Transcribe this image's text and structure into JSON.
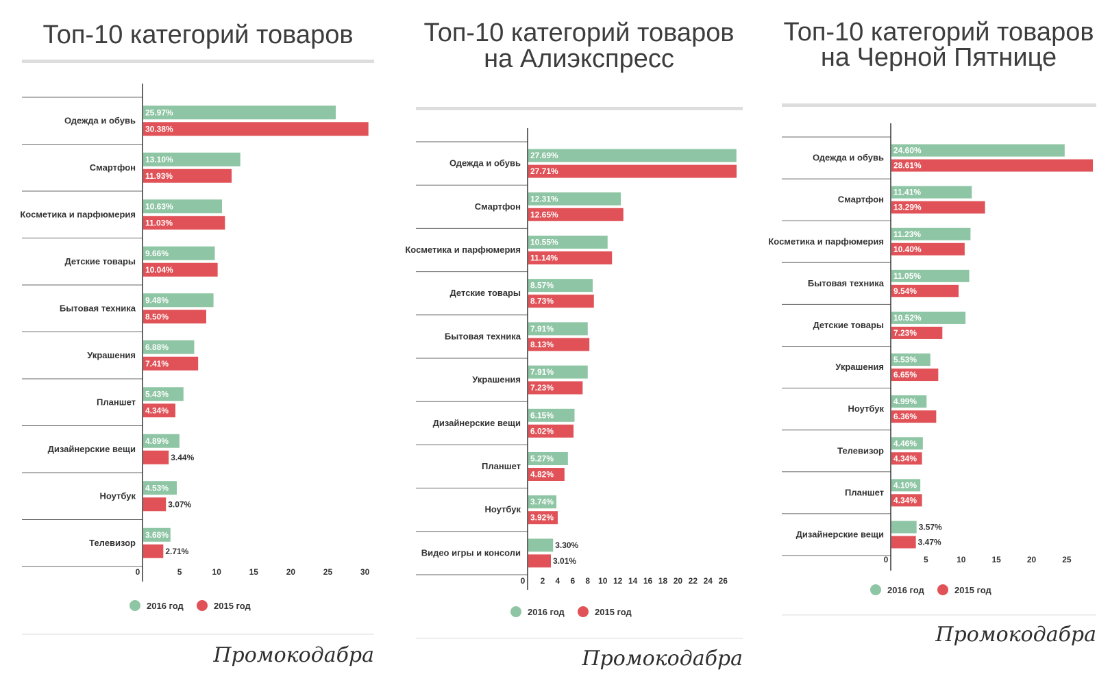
{
  "colors": {
    "y2016": "#8ec5a4",
    "y2015": "#e05257",
    "axis": "#333333",
    "rule": "#dddddd",
    "sep": "#666666"
  },
  "brand": "Промокодабра",
  "chart_data": [
    {
      "type": "bar",
      "orientation": "horizontal",
      "title": [
        "Топ-10 категорий товаров"
      ],
      "legend": [
        "2016 год",
        "2015 год"
      ],
      "categories": [
        "Одежда и обувь",
        "Смартфон",
        "Косметика и парфюмерия",
        "Детские товары",
        "Бытовая техника",
        "Украшения",
        "Планшет",
        "Дизайнерские вещи",
        "Ноутбук",
        "Телевизор"
      ],
      "series": [
        {
          "name": "2016 год",
          "values": [
            25.97,
            13.1,
            10.63,
            9.66,
            9.48,
            6.88,
            5.43,
            4.89,
            4.53,
            3.68
          ],
          "labels": [
            "25.97%",
            "13.10%",
            "10.63%",
            "9.66%",
            "9.48%",
            "6.88%",
            "5.43%",
            "4.89%",
            "4.53%",
            "3.68%"
          ]
        },
        {
          "name": "2015 год",
          "values": [
            30.38,
            11.93,
            11.03,
            10.04,
            8.5,
            7.41,
            4.34,
            3.44,
            3.07,
            2.71
          ],
          "labels": [
            "30.38%",
            "11.93%",
            "11.03%",
            "10.04%",
            "8.50%",
            "7.41%",
            "4.34%",
            "3.44%",
            "3.07%",
            "2.71%"
          ]
        }
      ],
      "xticks": [
        0,
        5,
        10,
        15,
        20,
        25,
        30
      ],
      "xlim": [
        0,
        30.5
      ]
    },
    {
      "type": "bar",
      "orientation": "horizontal",
      "title": [
        "Топ-10 категорий товаров",
        "на Алиэкспресс"
      ],
      "legend": [
        "2016 год",
        "2015 год"
      ],
      "categories": [
        "Одежда и обувь",
        "Смартфон",
        "Косметика и парфюмерия",
        "Детские товары",
        "Бытовая техника",
        "Украшения",
        "Дизайнерские вещи",
        "Планшет",
        "Ноутбук",
        "Видео игры и консоли"
      ],
      "series": [
        {
          "name": "2016 год",
          "values": [
            27.69,
            12.31,
            10.55,
            8.57,
            7.91,
            7.91,
            6.15,
            5.27,
            3.74,
            3.3
          ],
          "labels": [
            "27.69%",
            "12.31%",
            "10.55%",
            "8.57%",
            "7.91%",
            "7.91%",
            "6.15%",
            "5.27%",
            "3.74%",
            "3.30%"
          ]
        },
        {
          "name": "2015 год",
          "values": [
            27.71,
            12.65,
            11.14,
            8.73,
            8.13,
            7.23,
            6.02,
            4.82,
            3.92,
            3.01
          ],
          "labels": [
            "27.71%",
            "12.65%",
            "11.14%",
            "8.73%",
            "8.13%",
            "7.23%",
            "6.02%",
            "4.82%",
            "3.92%",
            "3.01%"
          ]
        }
      ],
      "xticks": [
        0,
        2,
        4,
        6,
        8,
        10,
        12,
        14,
        16,
        18,
        20,
        22,
        24,
        26
      ],
      "xlim": [
        0,
        27.8
      ]
    },
    {
      "type": "bar",
      "orientation": "horizontal",
      "title": [
        "Топ-10 категорий товаров",
        "на Черной Пятнице"
      ],
      "legend": [
        "2016 год",
        "2015 год"
      ],
      "categories": [
        "Одежда и обувь",
        "Смартфон",
        "Косметика и парфюмерия",
        "Бытовая техника",
        "Детские товары",
        "Украшения",
        "Ноутбук",
        "Телевизор",
        "Планшет",
        "Дизайнерские вещи"
      ],
      "series": [
        {
          "name": "2016 год",
          "values": [
            24.6,
            11.41,
            11.23,
            11.05,
            10.52,
            5.53,
            4.99,
            4.46,
            4.1,
            3.57
          ],
          "labels": [
            "24.60%",
            "11.41%",
            "11.23%",
            "11.05%",
            "10.52%",
            "5.53%",
            "4.99%",
            "4.46%",
            "4.10%",
            "3.57%"
          ]
        },
        {
          "name": "2015 год",
          "values": [
            28.61,
            13.29,
            10.4,
            9.54,
            7.23,
            6.65,
            6.36,
            4.34,
            4.34,
            3.47
          ],
          "labels": [
            "28.61%",
            "13.29%",
            "10.40%",
            "9.54%",
            "7.23%",
            "6.65%",
            "6.36%",
            "4.34%",
            "4.34%",
            "3.47%"
          ]
        }
      ],
      "xticks": [
        0,
        5,
        10,
        15,
        20,
        25
      ],
      "xlim": [
        0,
        28.8
      ]
    }
  ]
}
